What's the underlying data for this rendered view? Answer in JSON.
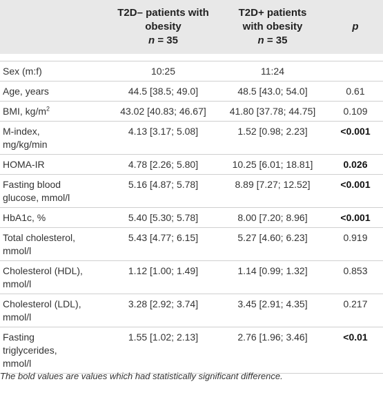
{
  "table": {
    "headers": {
      "col1": "",
      "col2_line1": "T2D– patients with",
      "col2_line2": "obesity",
      "col2_n_label": "n",
      "col2_n_value": " = 35",
      "col3_line1": "T2D+ patients",
      "col3_line2": "with obesity",
      "col3_n_label": "n",
      "col3_n_value": " = 35",
      "col4": "p"
    },
    "rows": [
      {
        "label_line1": "Sex (m:f)",
        "label_line2": "",
        "label_line3": "",
        "t2d_minus": "10:25",
        "t2d_plus": "11:24",
        "p": "",
        "p_bold": false
      },
      {
        "label_line1": "Age, years",
        "label_line2": "",
        "label_line3": "",
        "t2d_minus": "44.5 [38.5; 49.0]",
        "t2d_plus": "48.5 [43.0; 54.0]",
        "p": "0.61",
        "p_bold": false
      },
      {
        "label_line1": "BMI, kg/m",
        "label_sup": "2",
        "label_line2": "",
        "label_line3": "",
        "t2d_minus": "43.02 [40.83; 46.67]",
        "t2d_plus": "41.80 [37.78; 44.75]",
        "p": "0.109",
        "p_bold": false
      },
      {
        "label_line1": "M-index,",
        "label_line2": "mg/kg/min",
        "label_line3": "",
        "t2d_minus": "4.13 [3.17; 5.08]",
        "t2d_plus": "1.52 [0.98; 2.23]",
        "p": "<0.001",
        "p_bold": true
      },
      {
        "label_line1": "HOMA-IR",
        "label_line2": "",
        "label_line3": "",
        "t2d_minus": "4.78 [2.26; 5.80]",
        "t2d_plus": "10.25 [6.01; 18.81]",
        "p": "0.026",
        "p_bold": true
      },
      {
        "label_line1": "Fasting blood",
        "label_line2": "glucose, mmol/l",
        "label_line3": "",
        "t2d_minus": "5.16 [4.87; 5.78]",
        "t2d_plus": "8.89 [7.27; 12.52]",
        "p": "<0.001",
        "p_bold": true
      },
      {
        "label_line1": "HbA1c, %",
        "label_line2": "",
        "label_line3": "",
        "t2d_minus": "5.40 [5.30; 5.78]",
        "t2d_plus": "8.00 [7.20; 8.96]",
        "p": "<0.001",
        "p_bold": true
      },
      {
        "label_line1": "Total cholesterol,",
        "label_line2": "mmol/l",
        "label_line3": "",
        "t2d_minus": "5.43 [4.77; 6.15]",
        "t2d_plus": "5.27 [4.60; 6.23]",
        "p": "0.919",
        "p_bold": false
      },
      {
        "label_line1": "Cholesterol (HDL),",
        "label_line2": "mmol/l",
        "label_line3": "",
        "t2d_minus": "1.12 [1.00; 1.49]",
        "t2d_plus": "1.14 [0.99; 1.32]",
        "p": "0.853",
        "p_bold": false
      },
      {
        "label_line1": "Cholesterol (LDL),",
        "label_line2": "mmol/l",
        "label_line3": "",
        "t2d_minus": "3.28 [2.92; 3.74]",
        "t2d_plus": "3.45 [2.91; 4.35]",
        "p": "0.217",
        "p_bold": false
      },
      {
        "label_line1": "Fasting",
        "label_line2": "triglycerides,",
        "label_line3": "mmol/l",
        "t2d_minus": "1.55 [1.02; 2.13]",
        "t2d_plus": "2.76 [1.96; 3.46]",
        "p": "<0.01",
        "p_bold": true
      }
    ]
  },
  "footnote": "The bold values are values which had statistically significant difference.",
  "colors": {
    "header_bg": "#e8e8e8",
    "rule": "#cfcfcf",
    "text": "#333333"
  }
}
